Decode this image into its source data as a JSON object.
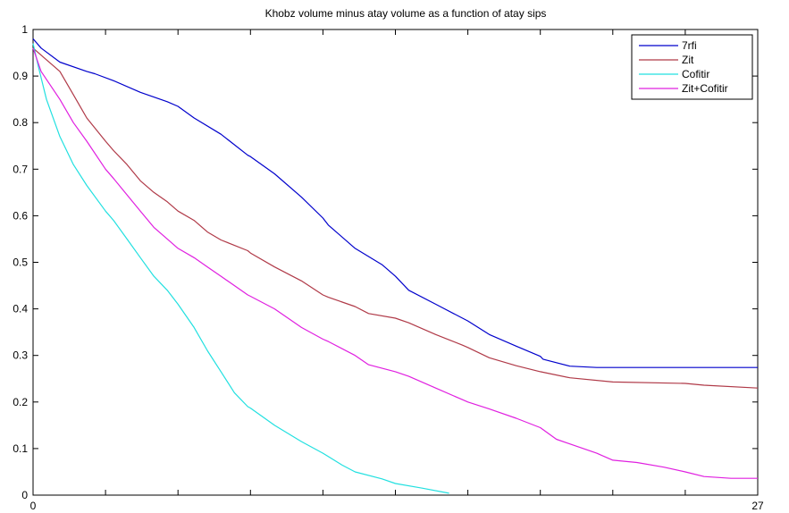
{
  "chart_data": {
    "type": "line",
    "title": "Khobz volume minus atay volume as a function of atay sips",
    "xlabel": "",
    "ylabel": "",
    "xlim": [
      0,
      27
    ],
    "ylim": [
      0,
      1
    ],
    "x_ticks_labeled": [
      0,
      27
    ],
    "x_ticks": [
      0,
      2.7,
      5.4,
      8.1,
      10.8,
      13.5,
      16.2,
      18.9,
      21.6,
      24.3,
      27
    ],
    "y_ticks": [
      0,
      0.1,
      0.2,
      0.3,
      0.4,
      0.5,
      0.6,
      0.7,
      0.8,
      0.9,
      1
    ],
    "y_tick_labels": [
      "0",
      "0.1",
      "0.2",
      "0.3",
      "0.4",
      "0.5",
      "0.6",
      "0.7",
      "0.8",
      "0.9",
      "1"
    ],
    "grid": false,
    "legend_position": "top-right",
    "series": [
      {
        "name": "7rfi",
        "color": "#0000cc",
        "points": [
          [
            0,
            0.98
          ],
          [
            0.3,
            0.96
          ],
          [
            1,
            0.93
          ],
          [
            2,
            0.91
          ],
          [
            2.3,
            0.905
          ],
          [
            3,
            0.89
          ],
          [
            4,
            0.865
          ],
          [
            5,
            0.845
          ],
          [
            5.4,
            0.835
          ],
          [
            6,
            0.81
          ],
          [
            7,
            0.775
          ],
          [
            8,
            0.73
          ],
          [
            8.1,
            0.727
          ],
          [
            9,
            0.69
          ],
          [
            10,
            0.64
          ],
          [
            10.8,
            0.595
          ],
          [
            11,
            0.58
          ],
          [
            12,
            0.53
          ],
          [
            13,
            0.495
          ],
          [
            13.5,
            0.47
          ],
          [
            14,
            0.44
          ],
          [
            15,
            0.41
          ],
          [
            16,
            0.38
          ],
          [
            16.2,
            0.374
          ],
          [
            17,
            0.345
          ],
          [
            18,
            0.32
          ],
          [
            18.9,
            0.298
          ],
          [
            19,
            0.292
          ],
          [
            20,
            0.277
          ],
          [
            21,
            0.274
          ],
          [
            21.6,
            0.274
          ],
          [
            24.3,
            0.274
          ],
          [
            27,
            0.274
          ]
        ]
      },
      {
        "name": "Zit",
        "color": "#b03a48",
        "points": [
          [
            0,
            0.96
          ],
          [
            0.4,
            0.94
          ],
          [
            1,
            0.91
          ],
          [
            1.5,
            0.86
          ],
          [
            2,
            0.81
          ],
          [
            2.7,
            0.76
          ],
          [
            3,
            0.74
          ],
          [
            3.5,
            0.71
          ],
          [
            4,
            0.675
          ],
          [
            4.5,
            0.65
          ],
          [
            5,
            0.63
          ],
          [
            5.4,
            0.61
          ],
          [
            6,
            0.59
          ],
          [
            6.5,
            0.565
          ],
          [
            7,
            0.548
          ],
          [
            8,
            0.525
          ],
          [
            8.1,
            0.52
          ],
          [
            9,
            0.49
          ],
          [
            10,
            0.46
          ],
          [
            10.8,
            0.43
          ],
          [
            11,
            0.425
          ],
          [
            12,
            0.405
          ],
          [
            12.5,
            0.39
          ],
          [
            13.5,
            0.38
          ],
          [
            14,
            0.37
          ],
          [
            15,
            0.345
          ],
          [
            16,
            0.322
          ],
          [
            16.2,
            0.317
          ],
          [
            17,
            0.295
          ],
          [
            18,
            0.278
          ],
          [
            18.9,
            0.265
          ],
          [
            20,
            0.252
          ],
          [
            21.6,
            0.243
          ],
          [
            24.3,
            0.24
          ],
          [
            25,
            0.236
          ],
          [
            27,
            0.23
          ]
        ]
      },
      {
        "name": "Cofitir",
        "color": "#22e0e0",
        "points": [
          [
            0,
            0.97
          ],
          [
            0.2,
            0.92
          ],
          [
            0.5,
            0.85
          ],
          [
            1,
            0.77
          ],
          [
            1.5,
            0.71
          ],
          [
            2,
            0.665
          ],
          [
            2.7,
            0.61
          ],
          [
            3,
            0.59
          ],
          [
            3.5,
            0.55
          ],
          [
            4,
            0.51
          ],
          [
            4.5,
            0.47
          ],
          [
            5,
            0.44
          ],
          [
            5.4,
            0.41
          ],
          [
            6,
            0.36
          ],
          [
            6.5,
            0.31
          ],
          [
            7,
            0.265
          ],
          [
            7.5,
            0.22
          ],
          [
            8,
            0.19
          ],
          [
            8.1,
            0.187
          ],
          [
            9,
            0.15
          ],
          [
            10,
            0.115
          ],
          [
            10.8,
            0.09
          ],
          [
            11.5,
            0.065
          ],
          [
            12,
            0.05
          ],
          [
            13,
            0.035
          ],
          [
            13.5,
            0.025
          ],
          [
            14.5,
            0.015
          ],
          [
            15.5,
            0.004
          ]
        ]
      },
      {
        "name": "Zit+Cofitir",
        "color": "#e020e0",
        "points": [
          [
            0,
            0.96
          ],
          [
            0.3,
            0.91
          ],
          [
            1,
            0.85
          ],
          [
            1.5,
            0.8
          ],
          [
            2,
            0.76
          ],
          [
            2.7,
            0.7
          ],
          [
            3,
            0.68
          ],
          [
            3.5,
            0.645
          ],
          [
            4,
            0.61
          ],
          [
            4.5,
            0.575
          ],
          [
            5,
            0.55
          ],
          [
            5.4,
            0.53
          ],
          [
            6,
            0.51
          ],
          [
            6.5,
            0.49
          ],
          [
            7,
            0.47
          ],
          [
            8,
            0.43
          ],
          [
            8.1,
            0.427
          ],
          [
            9,
            0.4
          ],
          [
            10,
            0.36
          ],
          [
            10.8,
            0.335
          ],
          [
            11,
            0.33
          ],
          [
            12,
            0.3
          ],
          [
            12.5,
            0.28
          ],
          [
            13.5,
            0.265
          ],
          [
            14,
            0.255
          ],
          [
            15,
            0.23
          ],
          [
            16,
            0.205
          ],
          [
            16.2,
            0.2
          ],
          [
            17,
            0.185
          ],
          [
            18,
            0.165
          ],
          [
            18.9,
            0.145
          ],
          [
            19.5,
            0.12
          ],
          [
            20,
            0.11
          ],
          [
            21,
            0.09
          ],
          [
            21.6,
            0.075
          ],
          [
            22.5,
            0.07
          ],
          [
            23.5,
            0.06
          ],
          [
            24.3,
            0.05
          ],
          [
            25,
            0.04
          ],
          [
            26,
            0.036
          ],
          [
            27,
            0.036
          ]
        ]
      }
    ]
  }
}
